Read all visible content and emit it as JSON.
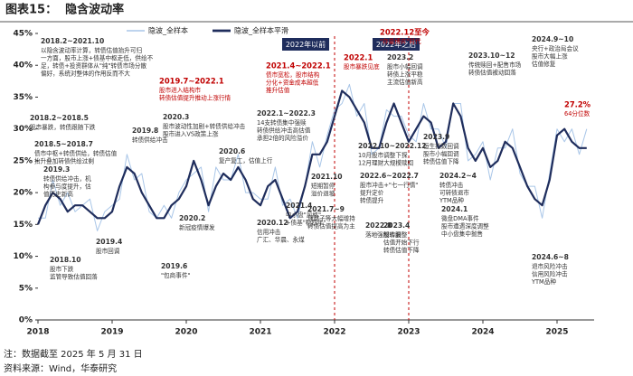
{
  "chart_data": {
    "type": "line",
    "title": "图表15：  隐含波动率",
    "note": "注：数据截至 2025 年 5 月 31 日",
    "source": "资料来源：Wind，华泰研究",
    "xlim": [
      2018,
      2025.5
    ],
    "xticks": [
      2018,
      2019,
      2020,
      2021,
      2022,
      2023,
      2024,
      2025
    ],
    "ylim": [
      0,
      45
    ],
    "yticks": [
      {
        "value": 0,
        "label": "0%"
      },
      {
        "value": 5,
        "label": "5%"
      },
      {
        "value": 10,
        "label": "10%"
      },
      {
        "value": 15,
        "label": "15%"
      },
      {
        "value": 20,
        "label": "20%"
      },
      {
        "value": 25,
        "label": "25%"
      },
      {
        "value": 30,
        "label": "30%"
      },
      {
        "value": 35,
        "label": "35%"
      },
      {
        "value": 40,
        "label": "40%"
      },
      {
        "value": 45,
        "label": "45%"
      }
    ],
    "grid": false,
    "legend": "top",
    "x": [
      2018.0,
      2018.1,
      2018.2,
      2018.3,
      2018.4,
      2018.5,
      2018.6,
      2018.7,
      2018.8,
      2018.9,
      2019.0,
      2019.1,
      2019.2,
      2019.3,
      2019.4,
      2019.5,
      2019.6,
      2019.7,
      2019.8,
      2019.9,
      2020.0,
      2020.1,
      2020.2,
      2020.3,
      2020.4,
      2020.5,
      2020.6,
      2020.7,
      2020.8,
      2020.9,
      2021.0,
      2021.1,
      2021.2,
      2021.3,
      2021.4,
      2021.5,
      2021.6,
      2021.7,
      2021.8,
      2021.9,
      2022.0,
      2022.1,
      2022.2,
      2022.3,
      2022.4,
      2022.5,
      2022.6,
      2022.7,
      2022.8,
      2022.9,
      2023.0,
      2023.1,
      2023.2,
      2023.3,
      2023.4,
      2023.5,
      2023.6,
      2023.7,
      2023.8,
      2023.9,
      2024.0,
      2024.1,
      2024.2,
      2024.3,
      2024.4,
      2024.5,
      2024.6,
      2024.7,
      2024.8,
      2024.9,
      2025.0,
      2025.1,
      2025.2,
      2025.3,
      2025.4
    ],
    "series": [
      {
        "name": "隐波_全样本",
        "color": "#a9c6e8",
        "width": 1,
        "values": [
          16,
          16,
          22,
          18,
          20,
          17,
          18,
          19,
          14,
          17,
          18,
          19,
          26,
          22,
          23,
          17,
          16,
          18,
          16,
          20,
          22,
          23,
          24,
          17,
          24,
          22,
          22,
          26,
          20,
          20,
          19,
          19,
          24,
          18,
          19,
          16,
          21,
          28,
          24,
          29,
          33,
          34,
          37,
          32,
          34,
          26,
          27,
          33,
          32,
          32,
          29,
          28,
          34,
          30,
          30,
          27,
          34,
          34,
          25,
          26,
          28,
          22,
          27,
          27,
          30,
          23,
          21,
          21,
          16,
          23,
          30,
          28,
          30,
          26,
          30
        ]
      },
      {
        "name": "隐波_全样本平滑",
        "color": "#1f2d5c",
        "width": 2.2,
        "values": [
          15,
          18,
          20,
          19,
          17,
          18,
          18,
          17,
          16,
          16,
          17,
          21,
          24,
          23,
          20,
          18,
          16,
          16,
          18,
          19,
          21,
          25,
          22,
          18,
          21,
          23,
          22,
          24,
          22,
          19,
          18,
          21,
          22,
          19,
          16,
          17,
          21,
          26,
          26,
          28,
          32,
          36,
          35,
          33,
          31,
          27,
          27,
          31,
          34,
          31,
          28,
          30,
          32,
          31,
          27,
          28,
          34,
          32,
          27,
          25,
          27,
          24,
          25,
          28,
          27,
          24,
          21,
          19,
          18,
          22,
          29,
          30,
          28,
          27,
          27
        ]
      }
    ],
    "periods": [
      "2022年以前",
      "2022年之后"
    ],
    "annotations": [
      {
        "title": "2018.2~2021.10",
        "color": "#333333",
        "lines": [
          "以隐含波动率计算，转债估值抬升可归",
          "一方面，股市上涨+债基中枢走低，供给不",
          "足，转债+投资群体从\"纯\"转债市场分散",
          "偏好，系统对整体的作用反而不大"
        ]
      },
      {
        "title": "2018.2~2018.5",
        "color": "#333333",
        "lines": [
          "股市暴跌，转债跟随下跌"
        ]
      },
      {
        "title": "2018.5~2018.7",
        "color": "#333333",
        "lines": [
          "债市中枢+转债供给，转债估值",
          "抬升叠加转债供给过剩"
        ]
      },
      {
        "title": "2019.3",
        "color": "#333333",
        "lines": [
          "转债供给冲击，机",
          "构参与度提升，估",
          "值历史新高"
        ]
      },
      {
        "title": "2018.10",
        "color": "#333333",
        "lines": [
          "股市下跌",
          "监管导致估值回落"
        ]
      },
      {
        "title": "2019.4",
        "color": "#333333",
        "lines": [
          "股市回调"
        ]
      },
      {
        "title": "2019.6",
        "color": "#333333",
        "lines": [
          "\"包商事件\""
        ]
      },
      {
        "title": "2019.8",
        "color": "#333333",
        "lines": [
          "转债供给冲击"
        ]
      },
      {
        "title": "2020.3",
        "color": "#333333",
        "lines": [
          "股市波动性加剧+转债供给冲击",
          "股市进入VS政策上涨"
        ]
      },
      {
        "title": "2020.2",
        "color": "#333333",
        "lines": [
          "新冠疫情爆发"
        ]
      },
      {
        "title": "2020.6",
        "color": "#333333",
        "lines": [
          "复产复工，估值上行"
        ]
      },
      {
        "title": "2020.12",
        "color": "#333333",
        "lines": [
          "信用冲击",
          "广汇、华晨、永煤"
        ]
      },
      {
        "title": "2022.1~2022.3",
        "color": "#333333",
        "lines": [
          "14支转债集中强赎",
          "转债供给冲击高估值",
          "承担2倍的风险溢价"
        ]
      },
      {
        "title": "2021.4",
        "color": "#333333",
        "lines": [
          "中小盘\"风格\"",
          "+债基\"稳四年\""
        ]
      },
      {
        "title": "2019.7~2022.1",
        "color": "#c00000",
        "lines": [
          "股市进入结构市",
          "转债估值提升推动上涨行情"
        ]
      },
      {
        "title": "2021.4~2022.1",
        "color": "#c00000",
        "lines": [
          "债市宽松，股市结构",
          "分化+资金成本超低",
          "推升估值"
        ]
      },
      {
        "title": "2022.1",
        "color": "#c00000",
        "lines": [
          "股市暴跌见底"
        ]
      },
      {
        "title": "2021.10",
        "color": "#333333",
        "lines": [
          "短期暂停",
          "溢价退坡"
        ]
      },
      {
        "title": "2022.6~2022.7",
        "color": "#333333",
        "lines": [
          "股市冲击+\"七一行情\"",
          "提升定价",
          "转债提升"
        ]
      },
      {
        "title": "2021.7~9",
        "color": "#333333",
        "lines": [
          "理财子等大幅增持",
          "转债估值提高为主"
        ]
      },
      {
        "title": "2022.10~2022.12",
        "color": "#333333",
        "lines": [
          "10月股市调整下探",
          "12月理财大规模赎回"
        ]
      },
      {
        "title": "2022.8",
        "color": "#333333",
        "lines": [
          "落地强制转股"
        ]
      },
      {
        "title": "2022.12至今",
        "color": "#c00000",
        "lines": [
          "\"存量博弈\"时代"
        ]
      },
      {
        "title": "2023.2",
        "color": "#333333",
        "lines": [
          "股市小幅回调",
          "转债上涨平稳",
          "主流估值新高"
        ]
      },
      {
        "title": "2023.9",
        "color": "#333333",
        "lines": [
          "恒生指数回调",
          "股市小幅回调",
          "转债估值下降"
        ]
      },
      {
        "title": "2023.4",
        "color": "#333333",
        "lines": [
          "股市调整",
          "估值开始下行",
          "转债估值下降"
        ]
      },
      {
        "title": "2023.10~12",
        "color": "#333333",
        "lines": [
          "传统赎回+配售市场",
          "转债估值被动回落"
        ]
      },
      {
        "title": "2024.2~4",
        "color": "#333333",
        "lines": [
          "转债冲击",
          "可转债退市",
          "YTM品种"
        ]
      },
      {
        "title": "2024.1",
        "color": "#333333",
        "lines": [
          "微盘DMA事件",
          "股市遭遇深度调整",
          "中小盘集中抛售"
        ]
      },
      {
        "title": "2024.6~8",
        "color": "#333333",
        "lines": [
          "退市风险冲击",
          "信用风险冲击",
          "YTM品种"
        ]
      },
      {
        "title": "2024.9~10",
        "color": "#333333",
        "lines": [
          "央行+政治局会议",
          "股市大幅上涨",
          "估值修复"
        ]
      },
      {
        "title": "27.2%",
        "color": "#c00000",
        "lines": [
          "64分位数"
        ]
      }
    ]
  }
}
